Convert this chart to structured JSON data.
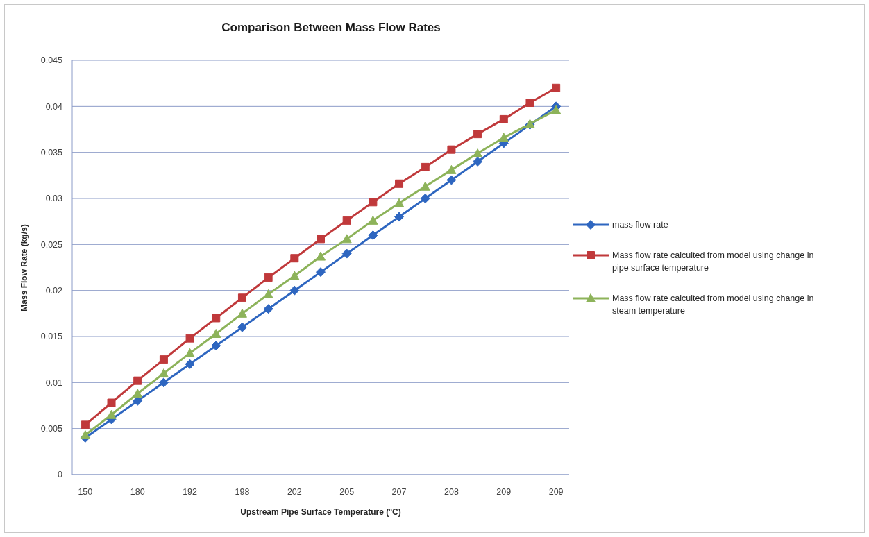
{
  "chart_data": {
    "type": "line",
    "title": "Comparison Between Mass Flow Rates",
    "xlabel": "Upstream Pipe Surface Temperature (°C)",
    "ylabel": "Mass Flow Rate (kg/s)",
    "categories": [
      "150",
      null,
      "180",
      null,
      "192",
      null,
      "198",
      null,
      "202",
      null,
      "205",
      null,
      "207",
      null,
      "208",
      null,
      "209",
      null,
      "209"
    ],
    "series": [
      {
        "name": "mass flow rate",
        "color": "#2e66c0",
        "marker": "diamond",
        "values": [
          0.004,
          0.006,
          0.008,
          0.01,
          0.012,
          0.014,
          0.016,
          0.018,
          0.02,
          0.022,
          0.024,
          0.026,
          0.028,
          0.03,
          0.032,
          0.034,
          0.036,
          0.038,
          0.04
        ]
      },
      {
        "name": "Mass flow rate calculted from model using change in pipe surface temperature",
        "color": "#c0393b",
        "marker": "square",
        "values": [
          0.0054,
          0.0078,
          0.0102,
          0.0125,
          0.0148,
          0.017,
          0.0192,
          0.0214,
          0.0235,
          0.0256,
          0.0276,
          0.0296,
          0.0316,
          0.0334,
          0.0353,
          0.037,
          0.0386,
          0.0404,
          0.042
        ]
      },
      {
        "name": "Mass flow rate calculted from model using change in steam temperature",
        "color": "#8db35a",
        "marker": "triangle",
        "values": [
          0.0043,
          0.0065,
          0.0088,
          0.011,
          0.0132,
          0.0153,
          0.0175,
          0.0196,
          0.0216,
          0.0237,
          0.0256,
          0.0276,
          0.0295,
          0.0313,
          0.0331,
          0.0349,
          0.0366,
          0.0381,
          0.0396
        ]
      }
    ],
    "ylim": [
      0,
      0.045
    ],
    "yticks": [
      0,
      0.005,
      0.01,
      0.015,
      0.02,
      0.025,
      0.03,
      0.035,
      0.04,
      0.045
    ],
    "grid": "y",
    "legend": "right",
    "line_style": "solid"
  }
}
